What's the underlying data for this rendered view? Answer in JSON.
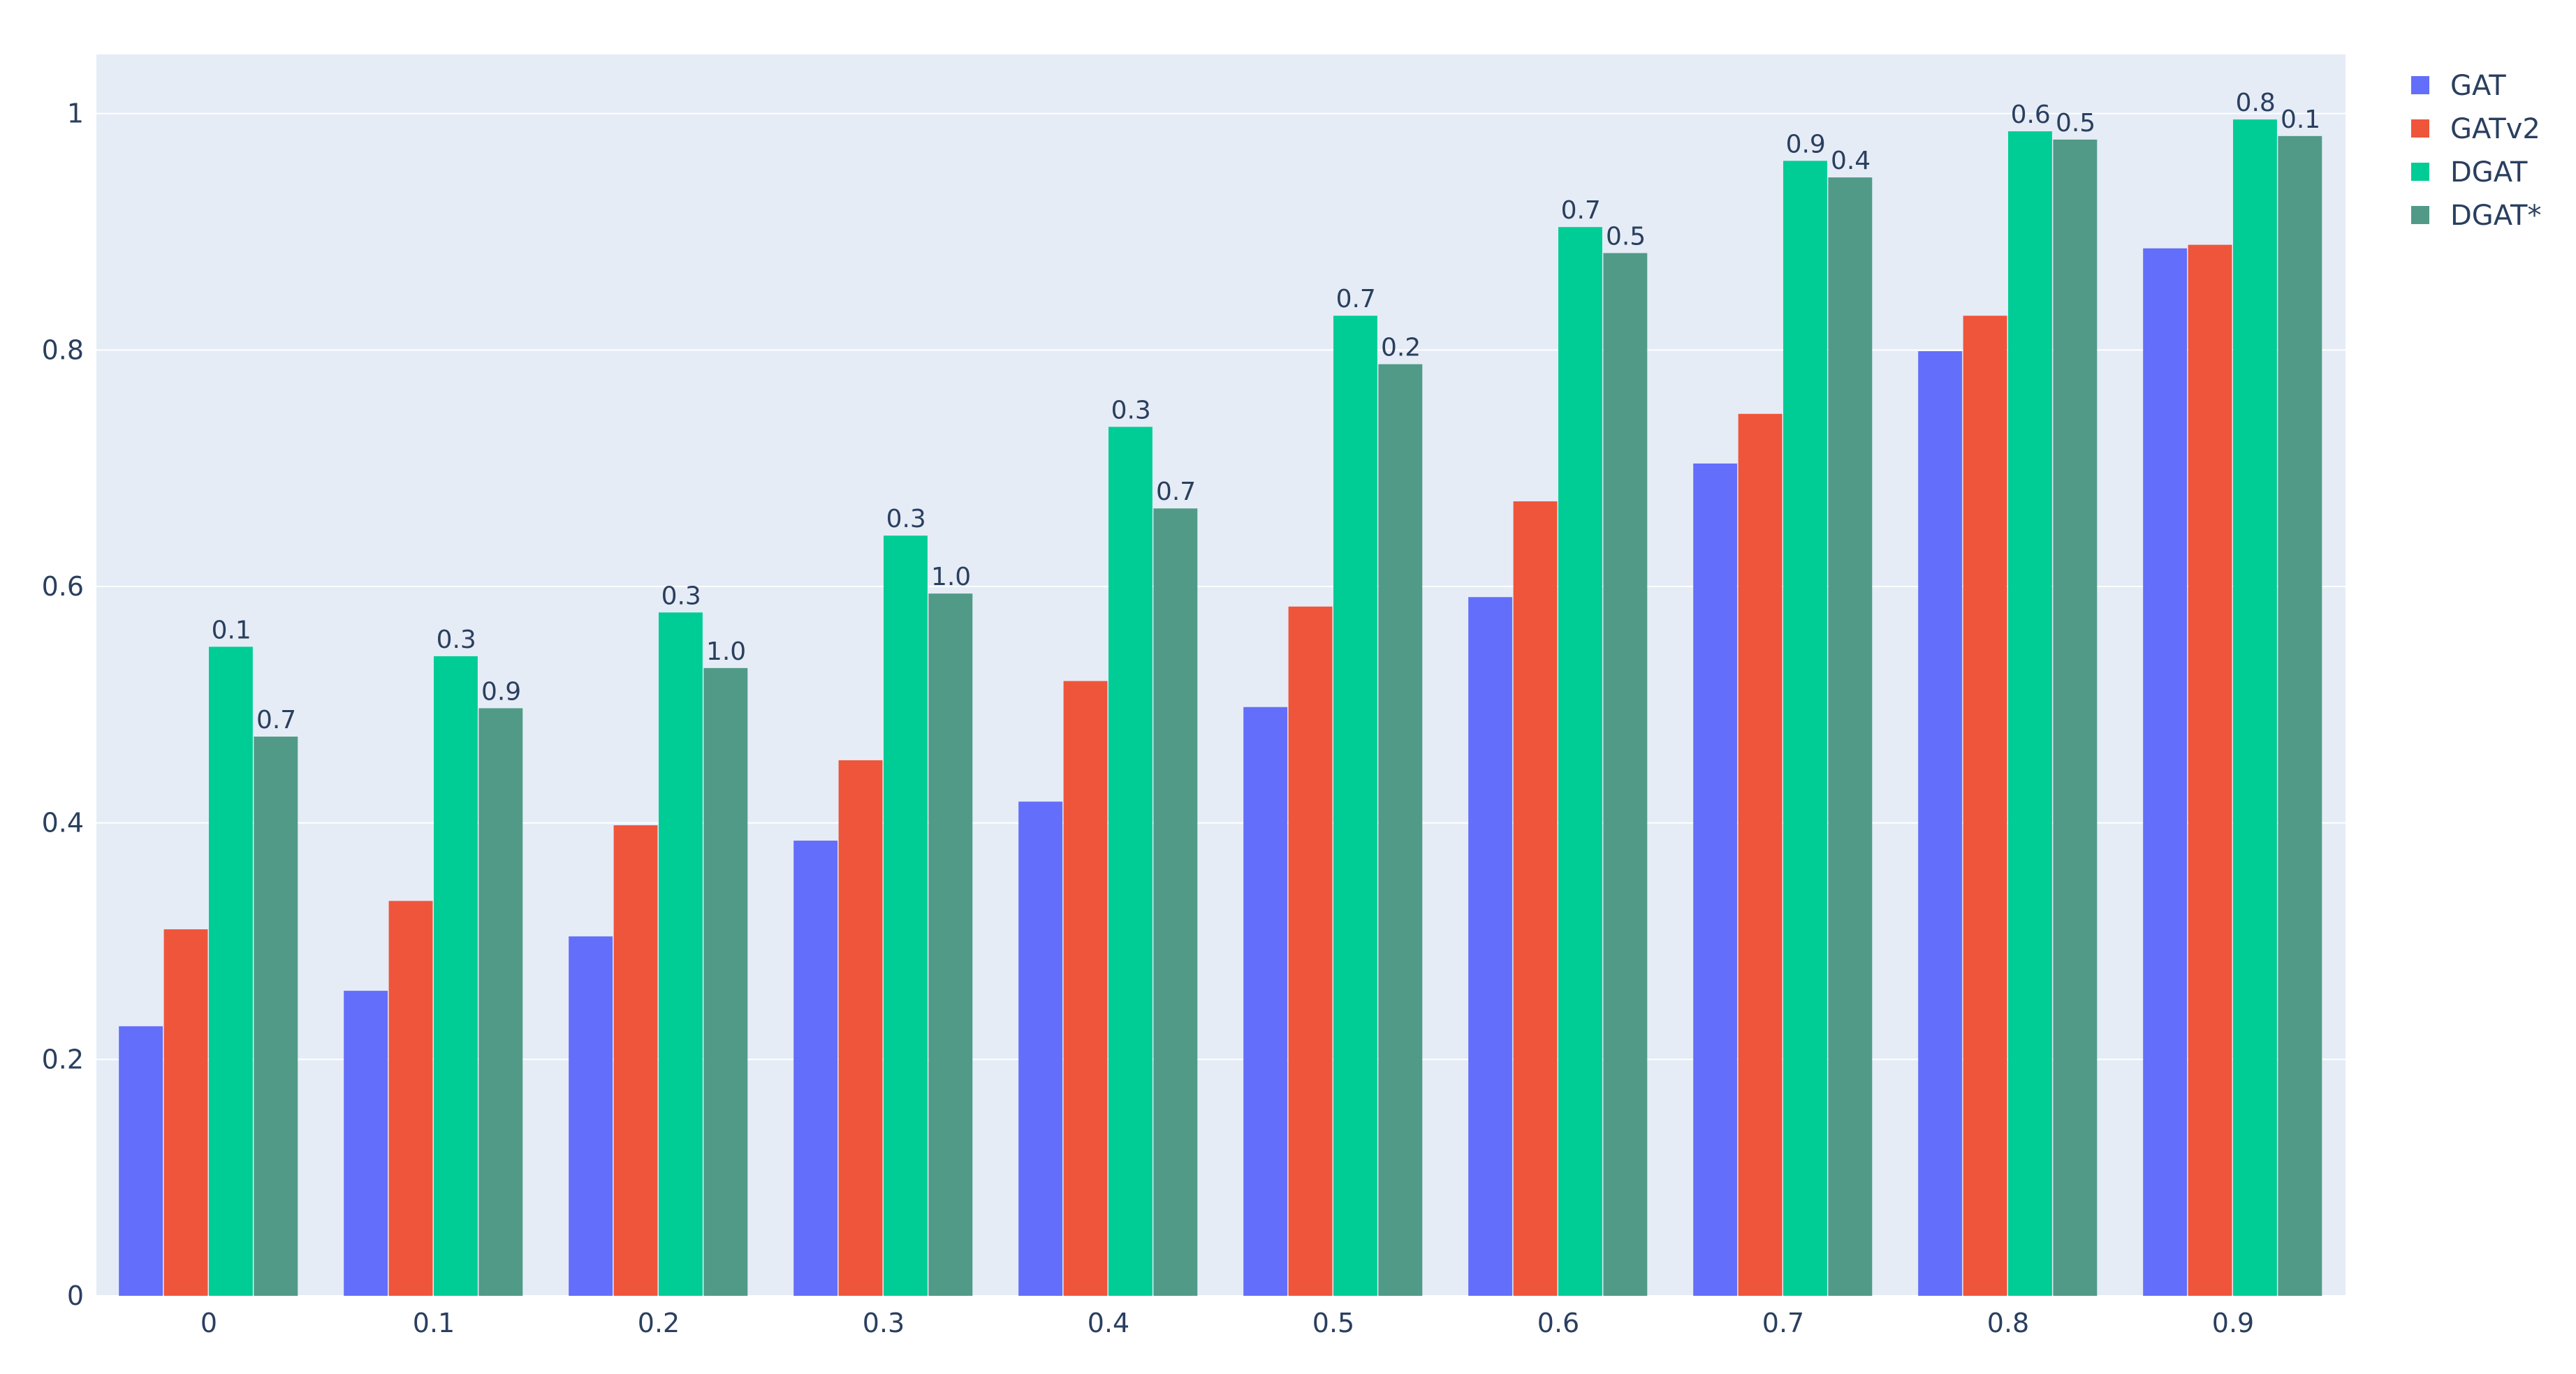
{
  "chart_data": {
    "type": "bar",
    "title": "",
    "xlabel": "",
    "ylabel": "",
    "ylim": [
      0,
      1.05
    ],
    "y_ticks": [
      0,
      0.2,
      0.4,
      0.6,
      0.8,
      1
    ],
    "y_tick_labels": [
      "0",
      "0.2",
      "0.4",
      "0.6",
      "0.8",
      "1"
    ],
    "categories": [
      "0",
      "0.1",
      "0.2",
      "0.3",
      "0.4",
      "0.5",
      "0.6",
      "0.7",
      "0.8",
      "0.9"
    ],
    "grid": true,
    "legend_position": "top-right",
    "plot_background": "#e5ecf6",
    "series": [
      {
        "name": "GAT",
        "color": "#636efa",
        "values": [
          0.228,
          0.258,
          0.304,
          0.385,
          0.418,
          0.498,
          0.591,
          0.704,
          0.799,
          0.886
        ],
        "labels": [
          "",
          "",
          "",
          "",
          "",
          "",
          "",
          "",
          "",
          ""
        ]
      },
      {
        "name": "GATv2",
        "color": "#ef553b",
        "values": [
          0.31,
          0.334,
          0.398,
          0.453,
          0.52,
          0.583,
          0.672,
          0.746,
          0.829,
          0.889
        ],
        "labels": [
          "",
          "",
          "",
          "",
          "",
          "",
          "",
          "",
          "",
          ""
        ]
      },
      {
        "name": "DGAT",
        "color": "#00cc96",
        "values": [
          0.549,
          0.541,
          0.578,
          0.643,
          0.735,
          0.829,
          0.904,
          0.96,
          0.985,
          0.995
        ],
        "labels": [
          "0.1",
          "0.3",
          "0.3",
          "0.3",
          "0.3",
          "0.7",
          "0.7",
          "0.9",
          "0.6",
          "0.8"
        ]
      },
      {
        "name": "DGAT*",
        "color": "#519a88",
        "values": [
          0.473,
          0.497,
          0.531,
          0.594,
          0.666,
          0.788,
          0.882,
          0.946,
          0.978,
          0.981
        ],
        "labels": [
          "0.7",
          "0.9",
          "1.0",
          "1.0",
          "0.7",
          "0.2",
          "0.5",
          "0.4",
          "0.5",
          "0.1"
        ]
      }
    ]
  }
}
